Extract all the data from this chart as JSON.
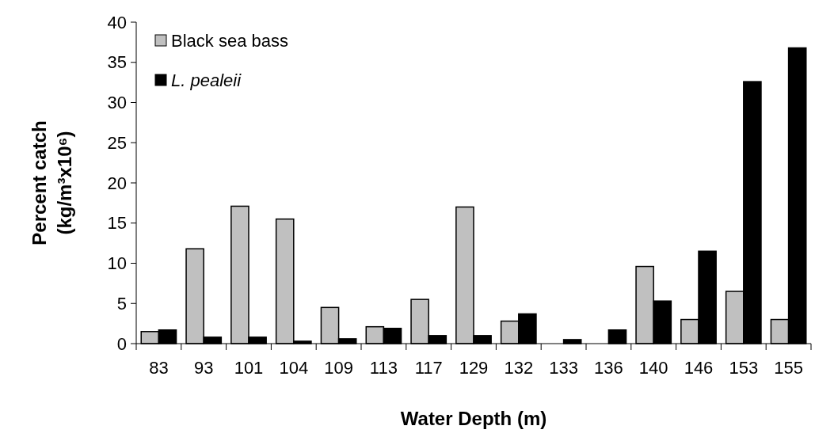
{
  "chart_data": {
    "type": "bar",
    "xlabel": "Water Depth (m)",
    "ylabel": "Percent catch\n(kg/m³x10⁶)",
    "categories": [
      "83",
      "93",
      "101",
      "104",
      "109",
      "113",
      "117",
      "129",
      "132",
      "133",
      "136",
      "140",
      "146",
      "153",
      "155"
    ],
    "series": [
      {
        "name": "Black sea bass",
        "color": "#c0c0c0",
        "values": [
          1.5,
          11.8,
          17.1,
          15.5,
          4.5,
          2.1,
          5.5,
          17.0,
          2.8,
          0,
          0,
          9.6,
          3.0,
          6.5,
          3.0
        ]
      },
      {
        "name": "L. pealeii",
        "color": "#000000",
        "values": [
          1.7,
          0.8,
          0.8,
          0.3,
          0.6,
          1.9,
          1,
          1,
          3.7,
          0.5,
          1.7,
          5.3,
          11.5,
          32.6,
          36.8
        ]
      }
    ],
    "ylim": [
      0,
      40
    ],
    "yticks": [
      0,
      5,
      10,
      15,
      20,
      25,
      30,
      35,
      40
    ],
    "grid": false,
    "legend": "top left"
  }
}
